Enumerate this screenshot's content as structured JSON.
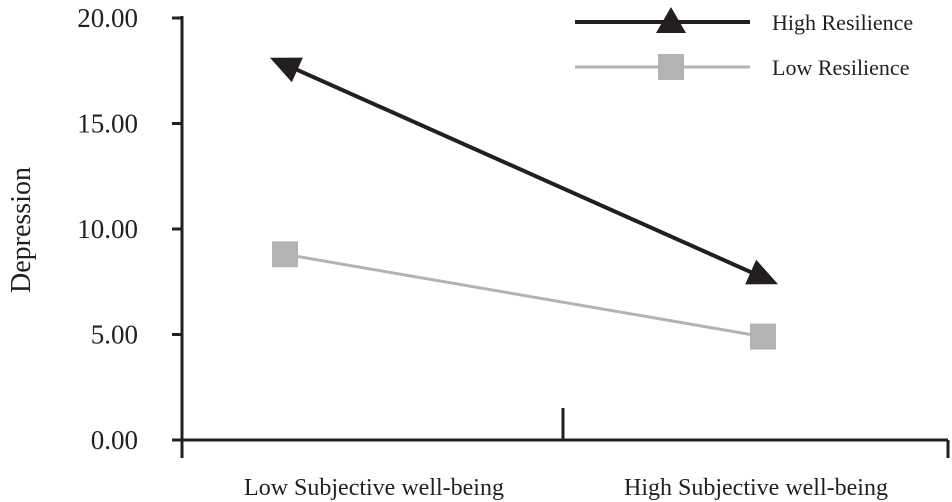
{
  "chart_data": {
    "type": "line",
    "title": "",
    "xlabel": "",
    "ylabel": "Depression",
    "ylim": [
      0,
      20
    ],
    "yticks": [
      "0.00",
      "5.00",
      "10.00",
      "15.00",
      "20.00"
    ],
    "categories": [
      "Low Subjective well-being",
      "High Subjective well-being"
    ],
    "series": [
      {
        "name": "High Resilience",
        "values": [
          17.8,
          7.7
        ],
        "color": "#231f20",
        "marker": "triangle"
      },
      {
        "name": "Low Resilience",
        "values": [
          8.8,
          4.9
        ],
        "color": "#b3b3b3",
        "marker": "square"
      }
    ],
    "grid": false,
    "legend_position": "top-right"
  }
}
